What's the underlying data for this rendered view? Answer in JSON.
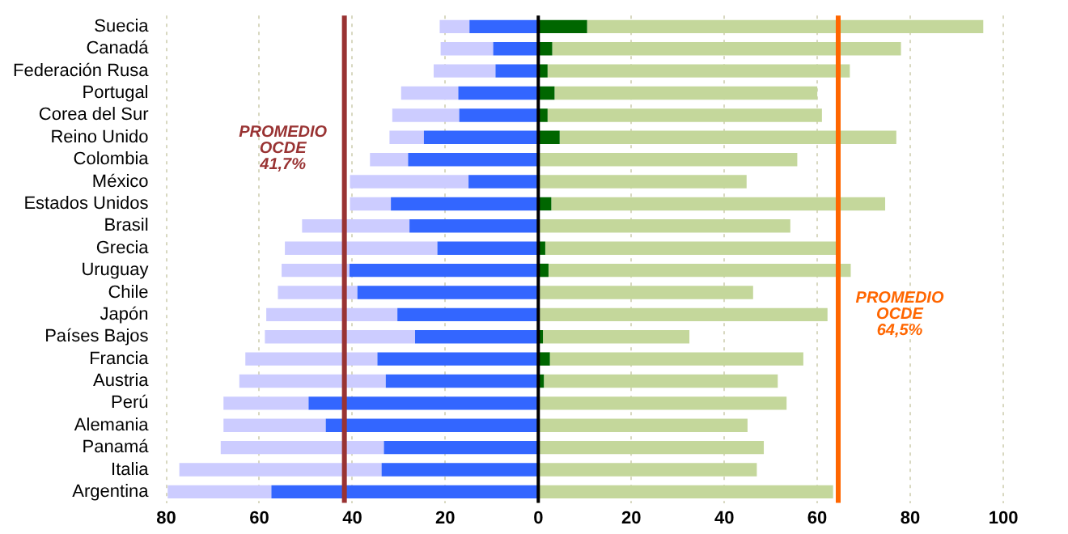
{
  "chart_data": {
    "type": "bar",
    "orientation": "horizontal",
    "categories": [
      "Suecia",
      "Canadá",
      "Federación Rusa",
      "Portugal",
      "Corea del Sur",
      "Reino Unido",
      "Colombia",
      "México",
      "Estados Unidos",
      "Brasil",
      "Grecia",
      "Uruguay",
      "Chile",
      "Japón",
      "Países Bajos",
      "Francia",
      "Austria",
      "Perú",
      "Alemania",
      "Panamá",
      "Italia",
      "Argentina"
    ],
    "series": [
      {
        "color": "#3366ff",
        "values": [
          -14.8,
          -9.7,
          -9.2,
          -17.2,
          -17,
          -24.6,
          -28,
          -15,
          -31.7,
          -27.7,
          -21.7,
          -40.6,
          -38.9,
          -30.3,
          -26.5,
          -34.6,
          -32.8,
          -49.4,
          -45.7,
          -33.2,
          -33.7,
          -57.4
        ]
      },
      {
        "color": "#ccccff",
        "values": [
          -6.4,
          -11.3,
          -13.3,
          -12.3,
          -14.4,
          -7.4,
          -8.2,
          -25.5,
          -8.8,
          -23.1,
          -32.8,
          -14.6,
          -17.1,
          -28.2,
          -32.3,
          -28.4,
          -31.5,
          -18.3,
          -22,
          -35.1,
          -43.5,
          -22.3
        ]
      },
      {
        "color": "#006600",
        "values": [
          10.5,
          3,
          2,
          3.5,
          2,
          4.6,
          null,
          null,
          2.8,
          null,
          1.5,
          2.2,
          null,
          null,
          1,
          2.5,
          1.2,
          null,
          null,
          null,
          null,
          null
        ]
      },
      {
        "color": "#c4d79b",
        "values": [
          85.2,
          75,
          65,
          56.5,
          59,
          72.4,
          55.7,
          44.8,
          71.8,
          54.2,
          62.7,
          65,
          46.2,
          62.2,
          31.5,
          54.5,
          50.3,
          53.4,
          45,
          48.5,
          47,
          63.4
        ]
      }
    ],
    "stacked": true,
    "xlim": [
      -80,
      100
    ],
    "xticks": [
      {
        "value": -80,
        "label": "80"
      },
      {
        "value": -60,
        "label": "60"
      },
      {
        "value": -40,
        "label": "40"
      },
      {
        "value": -20,
        "label": "20"
      },
      0,
      20,
      40,
      60,
      80,
      100
    ],
    "ref_lines": [
      {
        "axis": "x",
        "value": -41.7,
        "label": "PROMEDIO OCDE 41,7%",
        "color": "#993333"
      },
      {
        "axis": "x",
        "value": 64.5,
        "label": "PROMEDIO OCDE 64,5%",
        "color": "#ff6600"
      }
    ],
    "grid": "x",
    "legend": false
  }
}
